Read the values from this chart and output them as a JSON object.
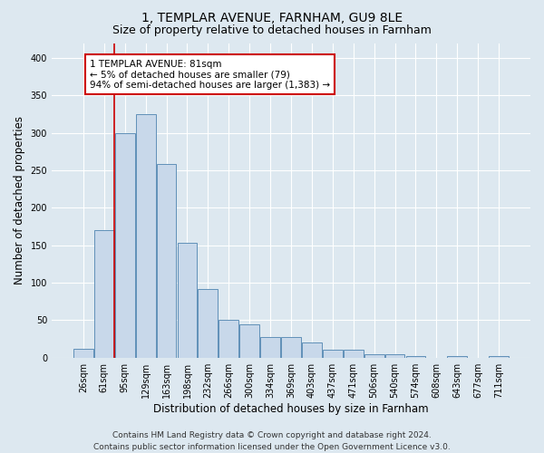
{
  "title": "1, TEMPLAR AVENUE, FARNHAM, GU9 8LE",
  "subtitle": "Size of property relative to detached houses in Farnham",
  "xlabel": "Distribution of detached houses by size in Farnham",
  "ylabel": "Number of detached properties",
  "bar_labels": [
    "26sqm",
    "61sqm",
    "95sqm",
    "129sqm",
    "163sqm",
    "198sqm",
    "232sqm",
    "266sqm",
    "300sqm",
    "334sqm",
    "369sqm",
    "403sqm",
    "437sqm",
    "471sqm",
    "506sqm",
    "540sqm",
    "574sqm",
    "608sqm",
    "643sqm",
    "677sqm",
    "711sqm"
  ],
  "bar_heights": [
    12,
    170,
    300,
    325,
    258,
    153,
    91,
    50,
    44,
    27,
    27,
    20,
    10,
    10,
    5,
    5,
    2,
    0,
    2,
    0,
    2
  ],
  "bar_color": "#c8d8ea",
  "bar_edge_color": "#6090b8",
  "vline_color": "#cc0000",
  "vline_x": 1.5,
  "annotation_text": "1 TEMPLAR AVENUE: 81sqm\n← 5% of detached houses are smaller (79)\n94% of semi-detached houses are larger (1,383) →",
  "annotation_box_facecolor": "#ffffff",
  "annotation_box_edgecolor": "#cc0000",
  "ylim": [
    0,
    420
  ],
  "yticks": [
    0,
    50,
    100,
    150,
    200,
    250,
    300,
    350,
    400
  ],
  "bg_color": "#dde8f0",
  "footer": "Contains HM Land Registry data © Crown copyright and database right 2024.\nContains public sector information licensed under the Open Government Licence v3.0.",
  "title_fontsize": 10,
  "subtitle_fontsize": 9,
  "xlabel_fontsize": 8.5,
  "ylabel_fontsize": 8.5,
  "tick_fontsize": 7,
  "annot_fontsize": 7.5,
  "footer_fontsize": 6.5
}
